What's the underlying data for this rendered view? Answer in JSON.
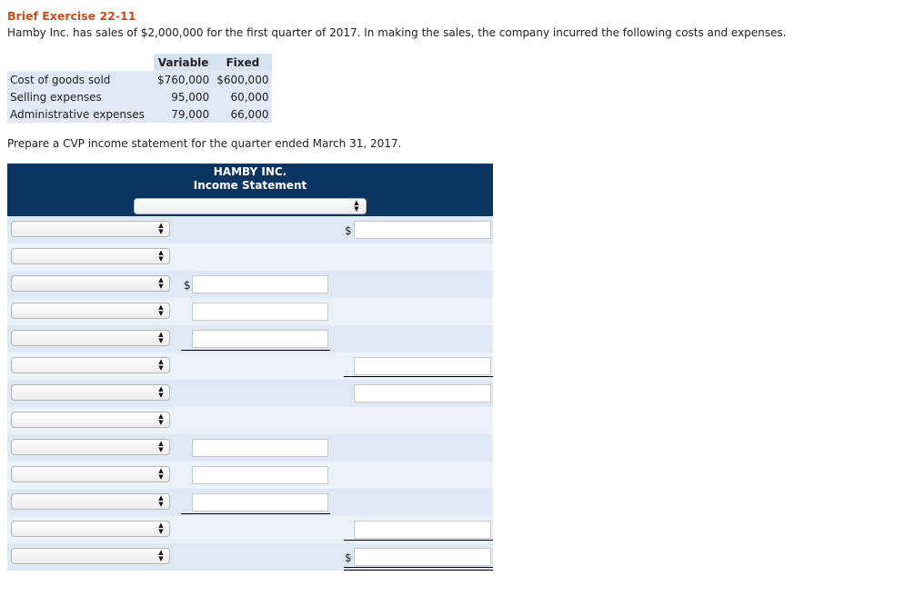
{
  "exercise": {
    "title": "Brief Exercise 22-11",
    "intro": "Hamby Inc. has sales of $2,000,000 for the first quarter of 2017. In making the sales, the company incurred the following costs and expenses.",
    "prompt": "Prepare a CVP income statement for the quarter ended March 31, 2017."
  },
  "cost_table": {
    "headers": [
      "Variable",
      "Fixed"
    ],
    "rows": [
      {
        "label": "Cost of goods sold",
        "variable": "$760,000",
        "fixed": "$600,000"
      },
      {
        "label": "Selling expenses",
        "variable": "95,000",
        "fixed": "60,000"
      },
      {
        "label": "Administrative expenses",
        "variable": "79,000",
        "fixed": "66,000"
      }
    ]
  },
  "statement": {
    "company": "HAMBY INC.",
    "name": "Income Statement",
    "currency_symbol": "$",
    "colors": {
      "header_bg": "#0b3560",
      "row_odd": "#dfe8f3",
      "row_even": "#ebf1f8",
      "title": "#c84d1a"
    },
    "icons": {
      "select_arrows": "updown-arrows-icon"
    }
  }
}
